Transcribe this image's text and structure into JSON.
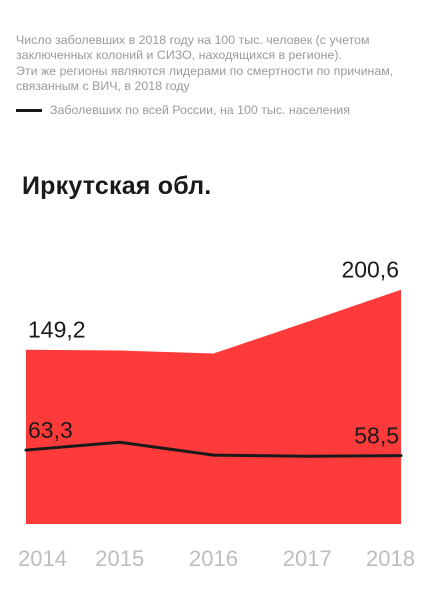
{
  "note": {
    "line1": "Число заболевших в 2018 году на 100 тыс. человек (с учетом заключенных колоний и СИЗО, находящихся в регионе).",
    "line2": "Эти же регионы являются лидерами по смертности по причинам, связанным с ВИЧ, в 2018 году"
  },
  "legend": {
    "label": "Заболевших по всей России, на 100 тыс. населения"
  },
  "colors": {
    "area": "#fe3a3a",
    "line": "#1a1a1a",
    "tick": "#bdbdbd"
  },
  "chart_data": {
    "type": "area",
    "title": "Иркутская обл.",
    "x": [
      "2014",
      "2015",
      "2016",
      "2017",
      "2018"
    ],
    "series": [
      {
        "type": "area",
        "values": [
          149.2,
          148.5,
          146.0,
          173.0,
          200.6
        ],
        "labels": [
          {
            "index": 0,
            "text": "149,2"
          },
          {
            "index": 4,
            "text": "200,6"
          }
        ]
      },
      {
        "name": "Заболевших по всей России, на 100 тыс. населения",
        "type": "line",
        "values": [
          63.3,
          70.0,
          59.0,
          58.0,
          58.5
        ],
        "labels": [
          {
            "index": 0,
            "text": "63,3"
          },
          {
            "index": 4,
            "text": "58,5"
          }
        ]
      }
    ],
    "ylim": [
      0,
      240
    ],
    "grid": false
  }
}
